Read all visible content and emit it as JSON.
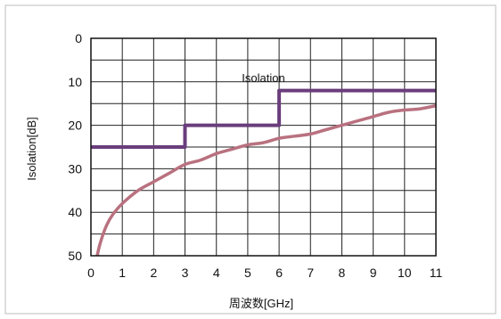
{
  "chart_data": {
    "type": "line",
    "title": "",
    "xlabel": "周波数[GHz]",
    "ylabel": "Isolation[dB]",
    "xlim": [
      0,
      11
    ],
    "ylim": [
      50,
      0
    ],
    "y_inverted": true,
    "grid": true,
    "legend": "none",
    "x_ticks": [
      "0",
      "1",
      "2",
      "3",
      "4",
      "5",
      "6",
      "7",
      "8",
      "9",
      "10",
      "11"
    ],
    "y_ticks": [
      "0",
      "10",
      "20",
      "30",
      "40",
      "50"
    ],
    "annotations": [
      {
        "text": "Isolation",
        "x": 5.5,
        "y": 10.5
      }
    ],
    "series": [
      {
        "color": "#6a3d7c",
        "style": "step",
        "x": [
          0,
          3,
          3,
          6,
          6,
          11
        ],
        "y": [
          25,
          25,
          20,
          20,
          12,
          12
        ]
      },
      {
        "color": "#b9717f",
        "style": "smooth",
        "x": [
          0.2,
          0.3,
          0.5,
          0.7,
          1.0,
          1.5,
          2.0,
          2.5,
          3.0,
          3.5,
          4.0,
          4.5,
          5.0,
          5.5,
          6.0,
          6.5,
          7.0,
          7.5,
          8.0,
          8.5,
          9.0,
          9.5,
          10.0,
          10.5,
          11.0
        ],
        "y": [
          50,
          47,
          43,
          40.5,
          38,
          35,
          33,
          31,
          29,
          28,
          26.5,
          25.5,
          24.5,
          24,
          23,
          22.5,
          22,
          21,
          20,
          19,
          18,
          17,
          16.5,
          16.2,
          15.5
        ]
      }
    ]
  }
}
